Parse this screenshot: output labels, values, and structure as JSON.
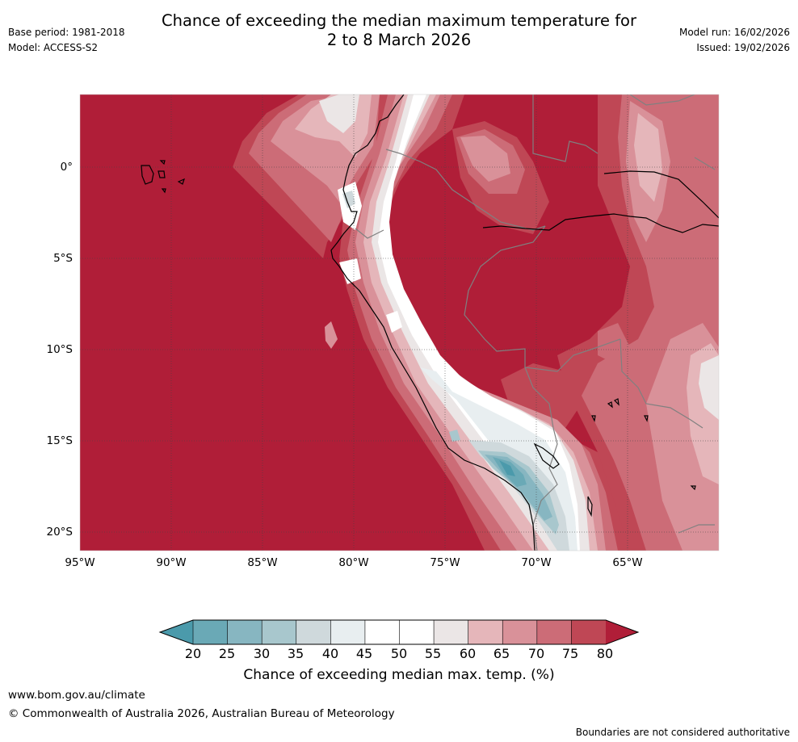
{
  "header": {
    "title_line1": "Chance of exceeding the median maximum temperature for",
    "title_line2": "2 to 8 March 2026",
    "base_period": "Base period: 1981-2018",
    "model": "Model: ACCESS-S2",
    "model_run": "Model run: 16/02/2026",
    "issued": "Issued: 19/02/2026"
  },
  "map": {
    "lat_labels": [
      "0°",
      "5°S",
      "10°S",
      "15°S",
      "20°S"
    ],
    "lon_labels": [
      "95°W",
      "90°W",
      "85°W",
      "80°W",
      "75°W",
      "70°W",
      "65°W"
    ],
    "colors": {
      "c80": "#b01e38",
      "c75": "#bf4755",
      "c70": "#cc6c77",
      "c65": "#d99199",
      "c60": "#e5b6ba",
      "c55": "#ebe6e6",
      "c50": "#ffffff",
      "c40": "#e8eef0",
      "c35": "#cfd9dc",
      "c30": "#a8c7cd",
      "c25": "#87b6c1",
      "c20": "#6aa9b6",
      "c15": "#4b9aab"
    }
  },
  "colorbar": {
    "ticks": [
      "20",
      "25",
      "30",
      "35",
      "40",
      "45",
      "50",
      "55",
      "60",
      "65",
      "70",
      "75",
      "80"
    ],
    "colors": [
      "#6aa9b6",
      "#87b6c1",
      "#a8c7cd",
      "#cfd9dc",
      "#e8eef0",
      "#ffffff",
      "#ffffff",
      "#ebe6e6",
      "#e5b6ba",
      "#d99199",
      "#cc6c77",
      "#bf4755"
    ],
    "under_color": "#4b9aab",
    "over_color": "#b01e38",
    "label": "Chance of exceeding median max. temp. (%)"
  },
  "footer": {
    "website": "www.bom.gov.au/climate",
    "copyright": "© Commonwealth of Australia 2026, Australian Bureau of Meteorology",
    "disclaimer": "Boundaries are not considered authoritative"
  }
}
